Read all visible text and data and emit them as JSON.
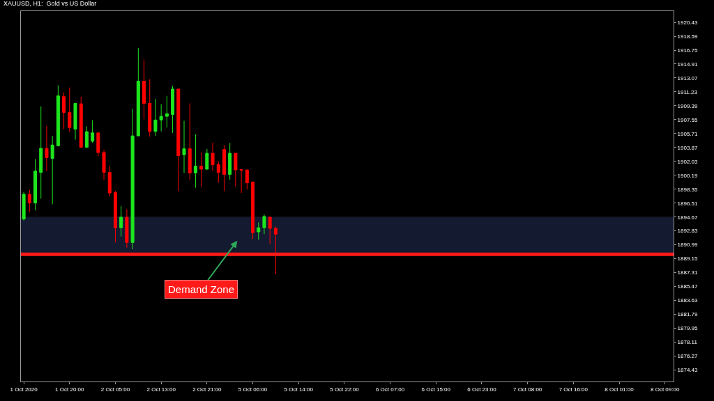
{
  "chart_data": {
    "type": "candlestick",
    "title": "XAUUSD, H1:  Gold vs US Dollar",
    "categories": [
      "1 Oct 2020",
      null,
      null,
      null,
      null,
      null,
      null,
      null,
      "1 Oct 20:00",
      null,
      null,
      null,
      null,
      null,
      null,
      null,
      "2 Oct 05:00",
      null,
      null,
      null,
      null,
      null,
      null,
      null,
      "2 Oct 13:00",
      null,
      null,
      null,
      null,
      null,
      null,
      null,
      "2 Oct 21:00",
      null,
      null,
      null,
      null,
      null,
      null,
      null,
      "5 Oct 06:00",
      null,
      null,
      null,
      null,
      null,
      null,
      null,
      "5 Oct 14:00",
      null,
      null,
      null,
      null,
      null,
      null,
      null,
      "5 Oct 22:00",
      null,
      null,
      null,
      null,
      null,
      null,
      null,
      "6 Oct 07:00",
      null,
      null,
      null,
      null,
      null,
      null,
      null,
      "6 Oct 15:00",
      null,
      null,
      null,
      null,
      null,
      null,
      null,
      "6 Oct 23:00",
      null,
      null,
      null,
      null,
      null,
      null,
      null,
      "7 Oct 08:00",
      null,
      null,
      null,
      null,
      null,
      null,
      null,
      "7 Oct 16:00",
      null,
      null,
      null,
      null,
      null,
      null,
      null,
      "8 Oct 01:00",
      null,
      null,
      null,
      null,
      null,
      null,
      null,
      "8 Oct 09:00",
      null
    ],
    "ohlc": [
      [
        1894.4,
        1898.0,
        1894.2,
        1897.67
      ],
      [
        1897.67,
        1898.29,
        1895.29,
        1896.52
      ],
      [
        1896.52,
        1902.34,
        1895.56,
        1900.75
      ],
      [
        1900.57,
        1909.3,
        1897.1,
        1903.74
      ],
      [
        1903.74,
        1906.75,
        1900.75,
        1902.51
      ],
      [
        1902.42,
        1905.4,
        1896.35,
        1904.19
      ],
      [
        1904.1,
        1912.1,
        1904.0,
        1910.7
      ],
      [
        1910.6,
        1911.15,
        1906.3,
        1908.5
      ],
      [
        1908.5,
        1911.8,
        1905.9,
        1906.5
      ],
      [
        1906.3,
        1909.8,
        1904.9,
        1909.7
      ],
      [
        1909.65,
        1910.6,
        1903.8,
        1903.9
      ],
      [
        1903.9,
        1906.65,
        1903.8,
        1905.96
      ],
      [
        1904.7,
        1907.5,
        1904.5,
        1905.8
      ],
      [
        1905.8,
        1905.8,
        1902.7,
        1903.2
      ],
      [
        1903.2,
        1903.55,
        1899.6,
        1900.57
      ],
      [
        1900.57,
        1901.4,
        1897.4,
        1897.85
      ],
      [
        1897.9,
        1898.1,
        1891.3,
        1893.25
      ],
      [
        1893.25,
        1896.1,
        1892.1,
        1894.65
      ],
      [
        1894.65,
        1895.7,
        1890.6,
        1891.3
      ],
      [
        1891.3,
        1909.0,
        1890.4,
        1905.4
      ],
      [
        1905.4,
        1917.05,
        1905.4,
        1912.65
      ],
      [
        1912.65,
        1915.5,
        1907.6,
        1909.7
      ],
      [
        1909.7,
        1912.9,
        1905.3,
        1906.0
      ],
      [
        1906.0,
        1910.3,
        1905.4,
        1907.5
      ],
      [
        1907.5,
        1909.6,
        1906.0,
        1907.99
      ],
      [
        1907.99,
        1910.7,
        1906.5,
        1908.33
      ],
      [
        1908.24,
        1912.03,
        1905.8,
        1911.6
      ],
      [
        1911.6,
        1911.6,
        1898.1,
        1902.8
      ],
      [
        1902.9,
        1907.4,
        1900.5,
        1903.7
      ],
      [
        1903.7,
        1909.7,
        1899.6,
        1900.5
      ],
      [
        1900.5,
        1905.6,
        1898.55,
        1901.4
      ],
      [
        1901.4,
        1903.2,
        1898.7,
        1901.0
      ],
      [
        1901.0,
        1903.66,
        1900.9,
        1903.1
      ],
      [
        1903.1,
        1904.5,
        1900.75,
        1901.6
      ],
      [
        1901.6,
        1902.05,
        1899.2,
        1900.57
      ],
      [
        1903.6,
        1904.2,
        1898.1,
        1900.3
      ],
      [
        1900.3,
        1904.45,
        1899.6,
        1903.1
      ],
      [
        1903.1,
        1903.1,
        1898.7,
        1900.9
      ],
      [
        1900.95,
        1901.0,
        1897.85,
        1900.85
      ],
      [
        1900.9,
        1900.9,
        1898.3,
        1899.2
      ],
      [
        1899.3,
        1899.3,
        1891.76,
        1892.6
      ],
      [
        1892.7,
        1893.96,
        1891.67,
        1893.25
      ],
      [
        1893.25,
        1895.0,
        1892.4,
        1894.74
      ],
      [
        1894.65,
        1894.74,
        1891.06,
        1893.16
      ],
      [
        1893.16,
        1893.4,
        1887.1,
        1892.4
      ],
      null,
      null,
      null,
      null,
      null,
      null,
      null,
      null,
      null,
      null,
      null,
      null,
      null,
      null,
      null,
      null,
      null,
      null,
      null,
      null,
      null,
      null,
      null,
      null,
      null,
      null,
      null,
      null,
      null,
      null,
      null,
      null,
      null,
      null,
      null,
      null,
      null,
      null,
      null,
      null,
      null,
      null,
      null,
      null,
      null,
      null,
      null,
      null,
      null,
      null,
      null,
      null,
      null,
      null,
      null,
      null,
      null,
      null,
      null,
      null,
      null,
      null,
      null,
      null,
      null,
      null,
      null,
      null,
      null
    ],
    "colors": [
      "#1ee61e",
      "#ff0000",
      "#1ee61e",
      "#1ee61e",
      "#ff0000",
      "#1ee61e",
      "#1ee61e",
      "#ff0000",
      "#ff0000",
      "#1ee61e",
      "#ff0000",
      "#1ee61e",
      "#1ee61e",
      "#ff0000",
      "#ff0000",
      "#ff0000",
      "#ff0000",
      "#1ee61e",
      "#ff0000",
      "#1ee61e",
      "#1ee61e",
      "#ff0000",
      "#ff0000",
      "#1ee61e",
      "#1ee61e",
      "#1ee61e",
      "#1ee61e",
      "#ff0000",
      "#1ee61e",
      "#ff0000",
      "#1ee61e",
      "#ff0000",
      "#1ee61e",
      "#ff0000",
      "#ff0000",
      "#ff0000",
      "#1ee61e",
      "#ff0000",
      "#ff0000",
      "#ff0000",
      "#ff0000",
      "#1ee61e",
      "#1ee61e",
      "#ff0000",
      "#ff0000",
      null,
      null,
      null,
      null,
      null,
      null,
      null,
      null,
      null,
      null,
      null,
      null,
      null,
      null,
      null,
      null,
      null,
      null,
      null,
      null,
      null,
      null,
      null,
      null,
      null,
      null,
      null,
      null,
      null,
      null,
      null,
      null,
      null,
      null,
      null,
      null,
      null,
      null,
      null,
      null,
      null,
      null,
      null,
      null,
      null,
      null,
      null,
      null,
      null,
      null,
      null,
      null,
      null,
      null,
      null,
      null,
      null,
      null,
      null,
      null,
      null,
      null,
      null,
      null,
      null,
      null,
      null,
      null,
      null
    ],
    "ylim": [
      1872.9,
      1921.91
    ],
    "yticks": [
      1874.43,
      1876.27,
      1878.11,
      1879.95,
      1881.79,
      1883.63,
      1885.47,
      1887.31,
      1889.15,
      1890.99,
      1892.83,
      1894.67,
      1896.51,
      1898.35,
      1900.19,
      1902.03,
      1903.87,
      1905.71,
      1907.55,
      1909.39,
      1911.23,
      1913.07,
      1914.91,
      1916.75,
      1918.59,
      1920.43
    ],
    "ref_lines": [
      {
        "axis": "y",
        "value": 1889.74,
        "color": "#ff1a1a"
      }
    ],
    "bands": [
      {
        "axis": "y",
        "from": 1889.96,
        "to": 1894.65,
        "color": "#3a4a8a"
      }
    ],
    "annotations": [
      "Demand Zone"
    ]
  }
}
